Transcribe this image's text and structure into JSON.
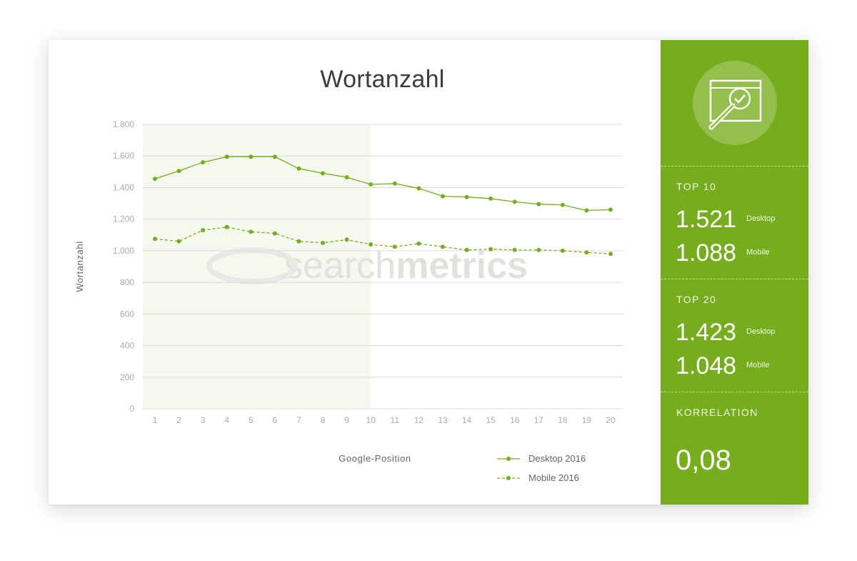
{
  "chart_data": {
    "type": "line",
    "title": "Wortanzahl",
    "xlabel": "Google-Position",
    "ylabel": "Wortanzahl",
    "x": [
      1,
      2,
      3,
      4,
      5,
      6,
      7,
      8,
      9,
      10,
      11,
      12,
      13,
      14,
      15,
      16,
      17,
      18,
      19,
      20
    ],
    "ylim": [
      0,
      1800
    ],
    "yticks": [
      0,
      200,
      400,
      600,
      800,
      1000,
      1200,
      1400,
      1600,
      1800
    ],
    "ytick_labels": [
      "0",
      "200",
      "400",
      "600",
      "800",
      "1.000",
      "1.200",
      "1.400",
      "1.600",
      "1.800"
    ],
    "highlight_range": [
      1,
      10
    ],
    "grid": "horizontal",
    "legend_position": "bottom-right",
    "series": [
      {
        "name": "Desktop 2016",
        "style": "solid",
        "color": "#76ad1c",
        "values": [
          1455,
          1505,
          1560,
          1595,
          1595,
          1595,
          1520,
          1490,
          1465,
          1420,
          1425,
          1395,
          1345,
          1340,
          1330,
          1310,
          1295,
          1290,
          1255,
          1260
        ]
      },
      {
        "name": "Mobile 2016",
        "style": "dashed",
        "color": "#76ad1c",
        "values": [
          1075,
          1060,
          1130,
          1150,
          1120,
          1110,
          1060,
          1050,
          1070,
          1040,
          1025,
          1045,
          1025,
          1005,
          1010,
          1005,
          1005,
          1000,
          990,
          980
        ]
      }
    ]
  },
  "watermark": {
    "part1": "search",
    "part2": "metrics"
  },
  "sidebar": {
    "icon": "magnifier-check-icon",
    "top10": {
      "label": "TOP 10",
      "desktop_value": "1.521",
      "desktop_label": "Desktop",
      "mobile_value": "1.088",
      "mobile_label": "Mobile"
    },
    "top20": {
      "label": "TOP 20",
      "desktop_value": "1.423",
      "desktop_label": "Desktop",
      "mobile_value": "1.048",
      "mobile_label": "Mobile"
    },
    "correlation": {
      "label": "KORRELATION",
      "value": "0,08"
    }
  },
  "colors": {
    "accent": "#76ad1c",
    "highlight": "#f4f8ee",
    "grid": "#dcdcdc",
    "axis_text": "#aaaaaa"
  }
}
